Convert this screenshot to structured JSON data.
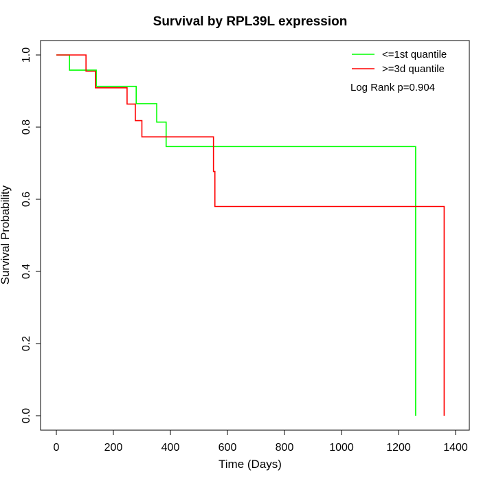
{
  "chart_data": {
    "type": "line",
    "title": "Survival by RPL39L expression",
    "xlabel": "Time (Days)",
    "ylabel": "Survival Probability",
    "xlim": [
      0,
      1400
    ],
    "ylim": [
      0,
      1.0
    ],
    "x_ticks": [
      0,
      200,
      400,
      600,
      800,
      1000,
      1200,
      1400
    ],
    "y_ticks": [
      0.0,
      0.2,
      0.4,
      0.6,
      0.8,
      1.0
    ],
    "x_tick_labels": [
      "0",
      "200",
      "400",
      "600",
      "800",
      "1000",
      "1200",
      "1400"
    ],
    "y_tick_labels": [
      "0.0",
      "0.2",
      "0.4",
      "0.6",
      "0.8",
      "1.0"
    ],
    "grid": false,
    "legend_position": "top-right",
    "annotation": "Log Rank p=0.904",
    "series": [
      {
        "name": "<=1st quantile",
        "color": "#00ff00",
        "step": true,
        "x": [
          0,
          46,
          120,
          140,
          280,
          352,
          385,
          1260,
          1260
        ],
        "y": [
          1.0,
          0.958,
          0.958,
          0.913,
          0.865,
          0.814,
          0.746,
          0.746,
          0.0
        ]
      },
      {
        "name": ">=3d quantile",
        "color": "#ff0000",
        "step": true,
        "x": [
          0,
          104,
          137,
          248,
          277,
          300,
          551,
          556,
          1360,
          1360
        ],
        "y": [
          1.0,
          0.955,
          0.909,
          0.864,
          0.818,
          0.773,
          0.677,
          0.58,
          0.58,
          0.0
        ]
      }
    ]
  }
}
